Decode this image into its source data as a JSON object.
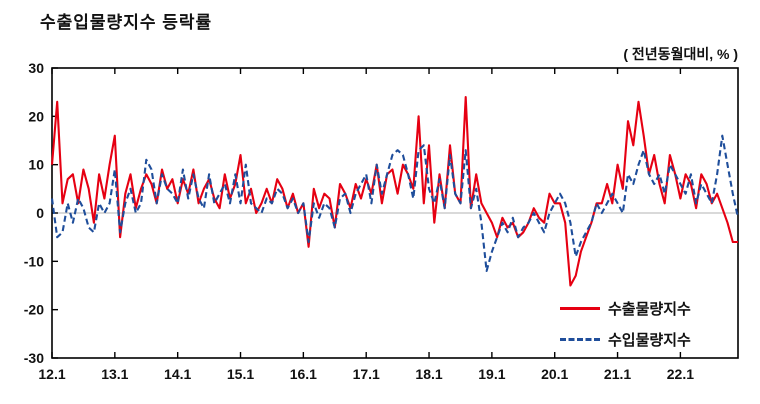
{
  "title": "수출입물량지수 등락률",
  "unit_note": "( 전년동월대비, % )",
  "legend": {
    "export_label": "수출물량지수",
    "import_label": "수입물량지수"
  },
  "colors": {
    "export": "#e60012",
    "import": "#1f4e9b",
    "zero_line": "#b3b3b3",
    "frame": "#000000",
    "tick": "#000000"
  },
  "chart_data": {
    "type": "line",
    "title": "수출입물량지수 등락률",
    "annotation": "( 전년동월대비, % )",
    "xlabel": "",
    "ylabel": "",
    "ylim": [
      -30,
      30
    ],
    "y_ticks": [
      -30,
      -20,
      -10,
      0,
      10,
      20,
      30
    ],
    "x_tick_labels": [
      "12.1",
      "13.1",
      "14.1",
      "15.1",
      "16.1",
      "17.1",
      "18.1",
      "19.1",
      "20.1",
      "21.1",
      "22.1"
    ],
    "x_tick_index": [
      0,
      12,
      24,
      36,
      48,
      60,
      72,
      84,
      96,
      108,
      120
    ],
    "x_unit": "year.month (monthly, 2012.1 - 2022.12)",
    "grid": false,
    "legend_position": "inside-bottom-right",
    "series": [
      {
        "name": "수출물량지수",
        "style": "solid",
        "color": "#e60012",
        "values": [
          10,
          23,
          2,
          7,
          8,
          2,
          9,
          5,
          -2,
          8,
          3,
          10,
          16,
          -5,
          4,
          8,
          1,
          5,
          8,
          6,
          2,
          9,
          5,
          7,
          2,
          7,
          4,
          9,
          2,
          5,
          7,
          3,
          1,
          8,
          3,
          6,
          12,
          2,
          5,
          0,
          2,
          5,
          2,
          7,
          5,
          1,
          4,
          0,
          2,
          -7,
          5,
          1,
          4,
          3,
          -3,
          6,
          4,
          1,
          6,
          3,
          7,
          4,
          10,
          2,
          8,
          9,
          4,
          10,
          8,
          5,
          20,
          2,
          14,
          -2,
          8,
          1,
          14,
          4,
          2,
          24,
          1,
          8,
          2,
          0,
          -2,
          -5,
          -1,
          -3,
          -2,
          -5,
          -4,
          -2,
          1,
          -1,
          -2,
          4,
          2,
          2,
          -2,
          -15,
          -13,
          -8,
          -5,
          -2,
          2,
          2,
          6,
          2,
          10,
          5,
          19,
          14,
          23,
          16,
          8,
          12,
          6,
          2,
          12,
          8,
          3,
          8,
          6,
          1,
          8,
          6,
          2,
          4,
          1,
          -2,
          -6,
          -6
        ]
      },
      {
        "name": "수입물량지수",
        "style": "dashed",
        "color": "#1f4e9b",
        "values": [
          3,
          -5,
          -4,
          2,
          -2,
          3,
          1,
          -3,
          -4,
          2,
          0,
          2,
          9,
          -4,
          2,
          5,
          0,
          2,
          11,
          9,
          2,
          8,
          5,
          4,
          2,
          9,
          3,
          8,
          3,
          1,
          8,
          2,
          4,
          6,
          2,
          8,
          2,
          10,
          2,
          1,
          0,
          3,
          2,
          5,
          4,
          1,
          3,
          0,
          2,
          -6,
          2,
          -1,
          2,
          1,
          -3,
          3,
          4,
          0,
          4,
          6,
          8,
          2,
          10,
          4,
          8,
          12,
          13,
          12,
          8,
          3,
          13,
          14,
          5,
          2,
          7,
          1,
          12,
          4,
          2,
          13,
          1,
          5,
          -2,
          -12,
          -8,
          -5,
          -2,
          -4,
          -1,
          -5,
          -3,
          -2,
          0,
          -2,
          -4,
          0,
          2,
          4,
          2,
          -2,
          -9,
          -6,
          -4,
          -2,
          2,
          0,
          2,
          4,
          2,
          0,
          8,
          6,
          10,
          13,
          8,
          6,
          8,
          4,
          10,
          8,
          6,
          4,
          8,
          2,
          6,
          4,
          2,
          8,
          16,
          10,
          4,
          -1
        ]
      }
    ]
  }
}
